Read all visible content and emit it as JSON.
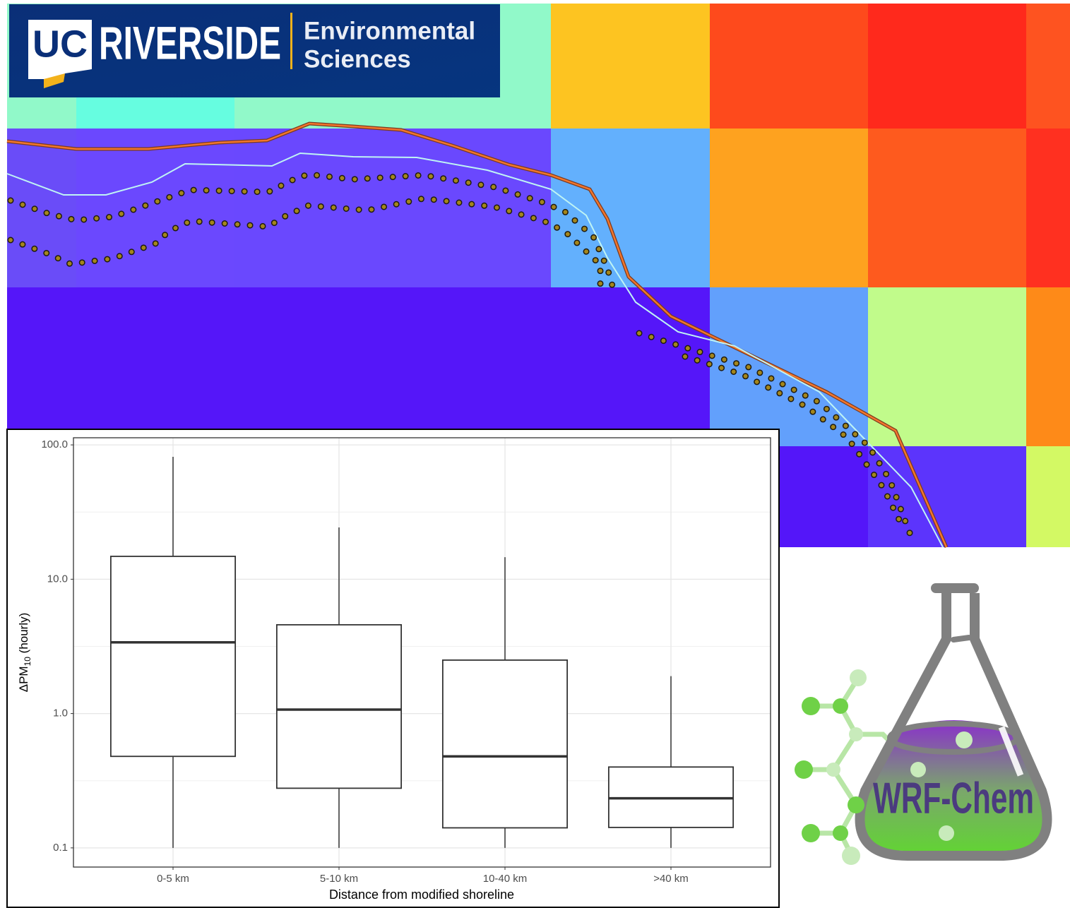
{
  "logos": {
    "uc": "UC",
    "campus": "RIVERSIDE",
    "department": [
      "Environmental",
      "Sciences"
    ],
    "model": "WRF-Chem"
  },
  "chart_data": {
    "type": "box",
    "y_label": [
      "ΔPM",
      "10",
      " (hourly)"
    ],
    "x_label": "Distance from modified shoreline",
    "categories": [
      "0-5 km",
      "5-10 km",
      "10-40 km",
      ">40 km"
    ],
    "boxes": [
      {
        "low": 0.1,
        "q1": 0.48,
        "median": 3.39,
        "q3": 14.8,
        "high": 81.5
      },
      {
        "low": 0.1,
        "q1": 0.278,
        "median": 1.07,
        "q3": 4.58,
        "high": 24.3
      },
      {
        "low": 0.1,
        "q1": 0.141,
        "median": 0.48,
        "q3": 2.5,
        "high": 14.6
      },
      {
        "low": 0.1,
        "q1": 0.142,
        "median": 0.234,
        "q3": 0.4,
        "high": 1.9
      }
    ],
    "color": "#333333",
    "y_log": true,
    "ylim": [
      0.072,
      113
    ],
    "yticks": [
      {
        "value": 0.1,
        "label": "0.1"
      },
      {
        "value": 1,
        "label": "1.0"
      },
      {
        "value": 10,
        "label": "10.0"
      },
      {
        "value": 100,
        "label": "100.0"
      }
    ],
    "grid": true
  }
}
